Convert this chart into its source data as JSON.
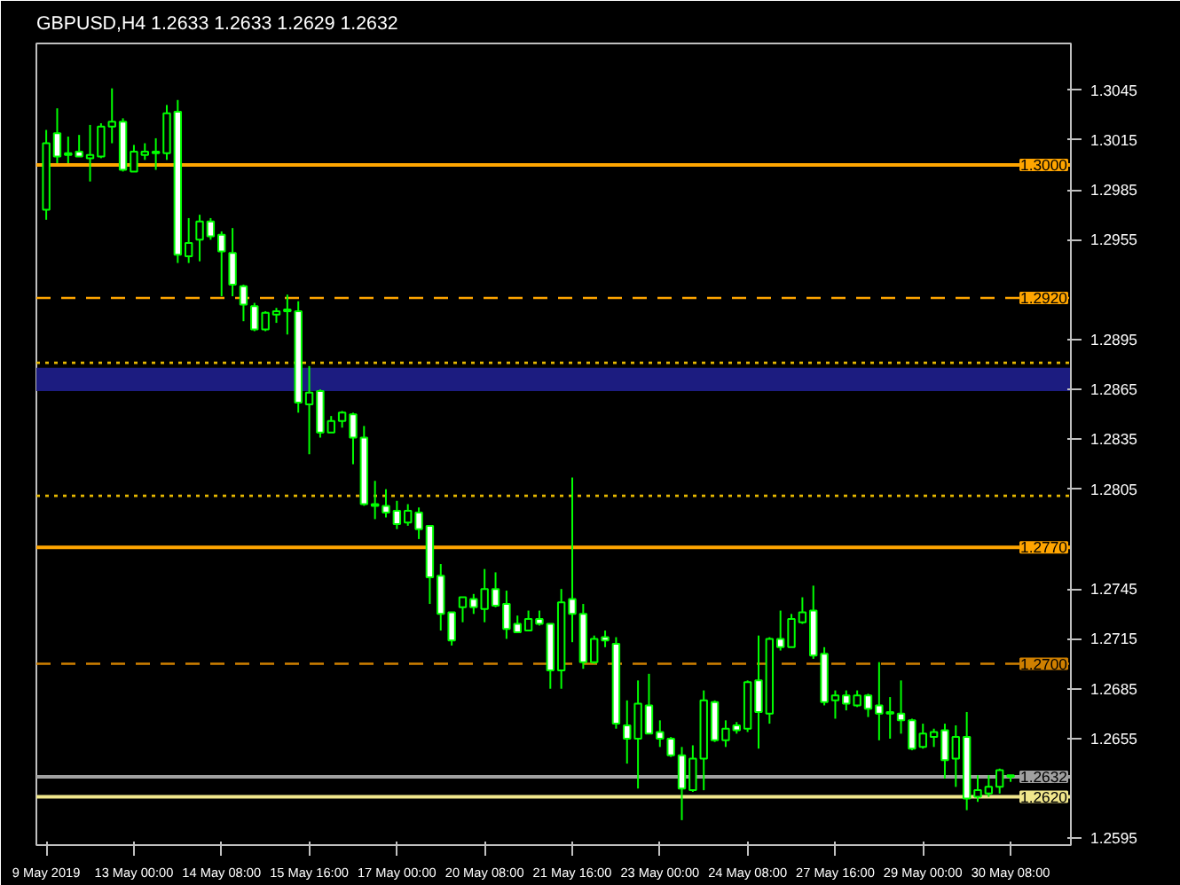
{
  "chart_data": {
    "type": "candlestick",
    "title": "GBPUSD,H4  1.2633 1.2633 1.2629 1.2632",
    "categories": [
      "9 May 2019",
      null,
      null,
      null,
      null,
      null,
      null,
      null,
      "13 May 00:00",
      null,
      null,
      null,
      null,
      null,
      null,
      null,
      "14 May 08:00",
      null,
      null,
      null,
      null,
      null,
      null,
      null,
      "15 May 16:00",
      null,
      null,
      null,
      null,
      null,
      null,
      null,
      "17 May 00:00",
      null,
      null,
      null,
      null,
      null,
      null,
      null,
      "20 May 08:00",
      null,
      null,
      null,
      null,
      null,
      null,
      null,
      "21 May 16:00",
      null,
      null,
      null,
      null,
      null,
      null,
      null,
      "23 May 00:00",
      null,
      null,
      null,
      null,
      null,
      null,
      null,
      "24 May 08:00",
      null,
      null,
      null,
      null,
      null,
      null,
      null,
      "27 May 16:00",
      null,
      null,
      null,
      null,
      null,
      null,
      null,
      "29 May 00:00",
      null,
      null,
      null,
      null,
      null,
      null,
      null,
      "30 May 08:00"
    ],
    "ohlc": [
      [
        1.2973,
        1.3021,
        1.2967,
        1.3013
      ],
      [
        1.3019,
        1.3034,
        1.3001,
        1.3005
      ],
      [
        1.3007,
        1.3017,
        1.3001,
        1.3006
      ],
      [
        1.3008,
        1.3018,
        1.3005,
        1.3005
      ],
      [
        1.3004,
        1.3024,
        1.299,
        1.3006
      ],
      [
        1.3005,
        1.3025,
        1.3004,
        1.3023
      ],
      [
        1.3023,
        1.3046,
        1.3013,
        1.3026
      ],
      [
        1.3026,
        1.3028,
        1.2996,
        1.2997
      ],
      [
        1.2996,
        1.3012,
        1.2996,
        1.3008
      ],
      [
        1.3006,
        1.3013,
        1.3003,
        1.3008
      ],
      [
        1.3008,
        1.3016,
        1.2997,
        1.3007
      ],
      [
        1.3007,
        1.3036,
        1.3003,
        1.3031
      ],
      [
        1.3032,
        1.3039,
        1.2941,
        1.2946
      ],
      [
        1.2945,
        1.2968,
        1.2941,
        1.2953
      ],
      [
        1.2955,
        1.297,
        1.2942,
        1.2966
      ],
      [
        1.2966,
        1.2968,
        1.2955,
        1.2957
      ],
      [
        1.2958,
        1.296,
        1.2921,
        1.2948
      ],
      [
        1.2947,
        1.2962,
        1.2921,
        1.2928
      ],
      [
        1.2927,
        1.2928,
        1.2906,
        1.2916
      ],
      [
        1.2915,
        1.2917,
        1.29,
        1.2901
      ],
      [
        1.2901,
        1.2912,
        1.29,
        1.2911
      ],
      [
        1.291,
        1.2914,
        1.2905,
        1.2912
      ],
      [
        1.2912,
        1.2922,
        1.2898,
        1.2913
      ],
      [
        1.2912,
        1.2918,
        1.2851,
        1.2857
      ],
      [
        1.2856,
        1.2879,
        1.2826,
        1.2863
      ],
      [
        1.2864,
        1.2865,
        1.2836,
        1.2839
      ],
      [
        1.2839,
        1.2849,
        1.2839,
        1.2846
      ],
      [
        1.2846,
        1.2852,
        1.2842,
        1.2851
      ],
      [
        1.285,
        1.2851,
        1.282,
        1.2836
      ],
      [
        1.2836,
        1.2843,
        1.2795,
        1.2796
      ],
      [
        1.2796,
        1.281,
        1.2787,
        1.2795
      ],
      [
        1.2795,
        1.2805,
        1.2788,
        1.2791
      ],
      [
        1.2792,
        1.2798,
        1.2781,
        1.2784
      ],
      [
        1.2785,
        1.2796,
        1.2783,
        1.2792
      ],
      [
        1.2791,
        1.2794,
        1.2775,
        1.2781
      ],
      [
        1.2783,
        1.2783,
        1.2736,
        1.2752
      ],
      [
        1.2753,
        1.276,
        1.272,
        1.273
      ],
      [
        1.2731,
        1.2731,
        1.2711,
        1.2714
      ],
      [
        1.2734,
        1.274,
        1.2725,
        1.274
      ],
      [
        1.2739,
        1.2742,
        1.273,
        1.2734
      ],
      [
        1.2733,
        1.2757,
        1.2725,
        1.2745
      ],
      [
        1.2745,
        1.2755,
        1.2734,
        1.2735
      ],
      [
        1.2736,
        1.2744,
        1.2715,
        1.2721
      ],
      [
        1.2724,
        1.2729,
        1.2719,
        1.2719
      ],
      [
        1.272,
        1.2732,
        1.272,
        1.2727
      ],
      [
        1.2727,
        1.2732,
        1.2723,
        1.2724
      ],
      [
        1.2724,
        1.2724,
        1.2685,
        1.2696
      ],
      [
        1.2696,
        1.2745,
        1.2685,
        1.2737
      ],
      [
        1.2739,
        1.2812,
        1.2713,
        1.273
      ],
      [
        1.273,
        1.2736,
        1.2697,
        1.2701
      ],
      [
        1.2701,
        1.2717,
        1.27,
        1.2715
      ],
      [
        1.2716,
        1.272,
        1.271,
        1.2714
      ],
      [
        1.2712,
        1.2716,
        1.2661,
        1.2664
      ],
      [
        1.2663,
        1.2678,
        1.264,
        1.2655
      ],
      [
        1.2655,
        1.269,
        1.2625,
        1.2676
      ],
      [
        1.2675,
        1.2694,
        1.2658,
        1.2658
      ],
      [
        1.2659,
        1.2666,
        1.265,
        1.2655
      ],
      [
        1.2655,
        1.2656,
        1.2644,
        1.2645
      ],
      [
        1.2645,
        1.265,
        1.2606,
        1.2625
      ],
      [
        1.2624,
        1.2651,
        1.2623,
        1.2643
      ],
      [
        1.2643,
        1.2684,
        1.2624,
        1.2678
      ],
      [
        1.2677,
        1.2678,
        1.2653,
        1.2654
      ],
      [
        1.2654,
        1.2666,
        1.265,
        1.2661
      ],
      [
        1.2663,
        1.2665,
        1.2658,
        1.266
      ],
      [
        1.2661,
        1.269,
        1.2659,
        1.2689
      ],
      [
        1.269,
        1.2717,
        1.2649,
        1.2671
      ],
      [
        1.267,
        1.2716,
        1.2664,
        1.2715
      ],
      [
        1.2715,
        1.2732,
        1.2708,
        1.271
      ],
      [
        1.271,
        1.273,
        1.271,
        1.2727
      ],
      [
        1.2725,
        1.274,
        1.2724,
        1.2731
      ],
      [
        1.2732,
        1.2747,
        1.2703,
        1.2705
      ],
      [
        1.2706,
        1.271,
        1.2675,
        1.2677
      ],
      [
        1.2678,
        1.2684,
        1.2667,
        1.2681
      ],
      [
        1.2681,
        1.2684,
        1.2672,
        1.2676
      ],
      [
        1.2675,
        1.2684,
        1.2674,
        1.2681
      ],
      [
        1.2681,
        1.2682,
        1.2668,
        1.2673
      ],
      [
        1.2675,
        1.2701,
        1.2654,
        1.267
      ],
      [
        1.2671,
        1.268,
        1.2655,
        1.267
      ],
      [
        1.267,
        1.269,
        1.2658,
        1.2666
      ],
      [
        1.2666,
        1.2667,
        1.2648,
        1.2649
      ],
      [
        1.265,
        1.2664,
        1.2649,
        1.2658
      ],
      [
        1.2656,
        1.2661,
        1.265,
        1.2659
      ],
      [
        1.266,
        1.2664,
        1.2631,
        1.2642
      ],
      [
        1.2643,
        1.2663,
        1.2626,
        1.2656
      ],
      [
        1.2656,
        1.2671,
        1.2612,
        1.2619
      ],
      [
        1.262,
        1.2633,
        1.2617,
        1.2624
      ],
      [
        1.2622,
        1.2633,
        1.262,
        1.2626
      ],
      [
        1.2626,
        1.2637,
        1.2622,
        1.2636
      ],
      [
        1.2633,
        1.2633,
        1.2629,
        1.2632
      ]
    ],
    "color": "#00ff00",
    "ylim": [
      1.2591,
      1.3073
    ],
    "yticks": [
      1.3045,
      1.3015,
      1.2985,
      1.2955,
      1.2895,
      1.2865,
      1.2835,
      1.2805,
      1.2745,
      1.2715,
      1.2685,
      1.2655,
      1.2595
    ],
    "ref_lines": [
      {
        "axis": "y",
        "value": 1.3,
        "label": "1.3000",
        "color": "#ffa500",
        "line_style": "solid"
      },
      {
        "axis": "y",
        "value": 1.292,
        "label": "1.2920",
        "color": "#ffa500",
        "line_style": "dashed"
      },
      {
        "axis": "y",
        "value": 1.2881,
        "color": "#e6b800",
        "line_style": "dotted"
      },
      {
        "axis": "y",
        "value": 1.2801,
        "color": "#e6b800",
        "line_style": "dotted"
      },
      {
        "axis": "y",
        "value": 1.277,
        "label": "1.2770",
        "color": "#ffa500",
        "line_style": "solid"
      },
      {
        "axis": "y",
        "value": 1.27,
        "label": "1.2700",
        "color": "#d08000",
        "line_style": "dashed"
      },
      {
        "axis": "y",
        "value": 1.2632,
        "label": "1.2632",
        "color": "#a0a0a0",
        "line_style": "solid"
      },
      {
        "axis": "y",
        "value": 1.262,
        "label": "1.2620",
        "color": "#f0e68c",
        "line_style": "solid"
      }
    ],
    "bands": [
      {
        "axis": "y",
        "from": 1.2864,
        "to": 1.2878,
        "color": "#1c1c80"
      }
    ],
    "grid": false
  }
}
